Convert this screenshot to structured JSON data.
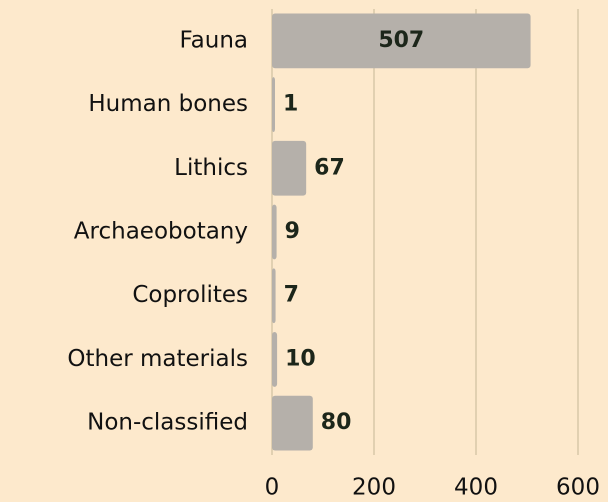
{
  "chart_data": {
    "type": "bar",
    "orientation": "horizontal",
    "categories": [
      "Fauna",
      "Human bones",
      "Lithics",
      "Archaeobotany",
      "Coprolites",
      "Other materials",
      "Non-classified"
    ],
    "values": [
      507,
      1,
      67,
      9,
      7,
      10,
      80
    ],
    "color": "#b5b0aa",
    "xlim": [
      0,
      600
    ],
    "xticks": [
      0,
      200,
      400,
      600
    ],
    "grid": true
  }
}
